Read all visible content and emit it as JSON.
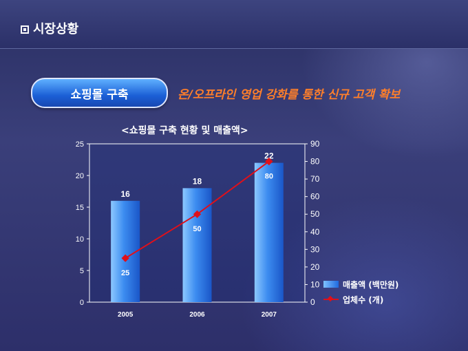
{
  "header": {
    "title": "시장상황"
  },
  "badge": {
    "label": "쇼핑몰 구축"
  },
  "tagline": "온/오프라인 영업 강화를 통한 신규 고객 확보",
  "colors": {
    "bar": "#2a78e8",
    "line": "#e0101a",
    "tagline": "#ff7f2a"
  },
  "chart_data": {
    "type": "bar",
    "title": "<쇼핑몰 구축 현황 및 매출액>",
    "categories": [
      "2005",
      "2006",
      "2007"
    ],
    "y_left": {
      "range": [
        0,
        25
      ],
      "ticks": [
        "0",
        "5",
        "10",
        "15",
        "20",
        "25"
      ]
    },
    "y_right": {
      "range": [
        0,
        90
      ],
      "ticks": [
        "0",
        "10",
        "20",
        "30",
        "40",
        "50",
        "60",
        "70",
        "80",
        "90"
      ]
    },
    "series": [
      {
        "name": "매출액 (백만원)",
        "type": "bar",
        "axis": "left",
        "values": [
          16,
          18,
          22
        ]
      },
      {
        "name": "업체수 (개)",
        "type": "line",
        "axis": "right",
        "values": [
          25,
          50,
          80
        ]
      }
    ],
    "legend": "right",
    "grid": false
  }
}
